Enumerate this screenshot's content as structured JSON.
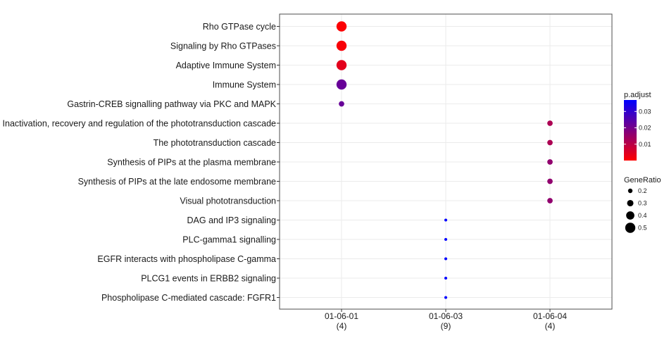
{
  "chart_data": {
    "type": "scatter",
    "title": "",
    "xlabel": "",
    "ylabel": "",
    "grid": true,
    "legend_position": "right",
    "x_categories": [
      {
        "label": "01-06-01",
        "count": "(4)"
      },
      {
        "label": "01-06-03",
        "count": "(9)"
      },
      {
        "label": "01-06-04",
        "count": "(4)"
      }
    ],
    "y_categories": [
      "Rho GTPase cycle",
      "Signaling by Rho GTPases",
      "Adaptive Immune System",
      "Immune System",
      "Gastrin-CREB signalling pathway via PKC and MAPK",
      "Inactivation, recovery and regulation of the phototransduction cascade",
      "The phototransduction cascade",
      "Synthesis of PIPs at the plasma membrane",
      "Synthesis of PIPs at the late endosome membrane",
      "Visual phototransduction",
      "DAG and IP3 signaling",
      "PLC-gamma1 signalling",
      "EGFR interacts with phospholipase C-gamma",
      "PLCG1 events in ERBB2 signaling",
      "Phospholipase C-mediated cascade: FGFR1"
    ],
    "points": [
      {
        "x": "01-06-01",
        "y": "Rho GTPase cycle",
        "gene_ratio": 0.5,
        "p_adjust": 0.0005
      },
      {
        "x": "01-06-01",
        "y": "Signaling by Rho GTPases",
        "gene_ratio": 0.5,
        "p_adjust": 0.001
      },
      {
        "x": "01-06-01",
        "y": "Adaptive Immune System",
        "gene_ratio": 0.5,
        "p_adjust": 0.004
      },
      {
        "x": "01-06-01",
        "y": "Immune System",
        "gene_ratio": 0.5,
        "p_adjust": 0.022
      },
      {
        "x": "01-06-01",
        "y": "Gastrin-CREB signalling pathway via PKC and MAPK",
        "gene_ratio": 0.25,
        "p_adjust": 0.022
      },
      {
        "x": "01-06-04",
        "y": "Inactivation, recovery and regulation of the phototransduction cascade",
        "gene_ratio": 0.25,
        "p_adjust": 0.012
      },
      {
        "x": "01-06-04",
        "y": "The phototransduction cascade",
        "gene_ratio": 0.25,
        "p_adjust": 0.012
      },
      {
        "x": "01-06-04",
        "y": "Synthesis of PIPs at the plasma membrane",
        "gene_ratio": 0.25,
        "p_adjust": 0.016
      },
      {
        "x": "01-06-04",
        "y": "Synthesis of PIPs at the late endosome membrane",
        "gene_ratio": 0.25,
        "p_adjust": 0.016
      },
      {
        "x": "01-06-04",
        "y": "Visual phototransduction",
        "gene_ratio": 0.25,
        "p_adjust": 0.016
      },
      {
        "x": "01-06-03",
        "y": "DAG and IP3 signaling",
        "gene_ratio": 0.111,
        "p_adjust": 0.037
      },
      {
        "x": "01-06-03",
        "y": "PLC-gamma1 signalling",
        "gene_ratio": 0.111,
        "p_adjust": 0.037
      },
      {
        "x": "01-06-03",
        "y": "EGFR interacts with phospholipase C-gamma",
        "gene_ratio": 0.111,
        "p_adjust": 0.037
      },
      {
        "x": "01-06-03",
        "y": "PLCG1 events in ERBB2 signaling",
        "gene_ratio": 0.111,
        "p_adjust": 0.037
      },
      {
        "x": "01-06-03",
        "y": "Phospholipase C-mediated cascade: FGFR1",
        "gene_ratio": 0.111,
        "p_adjust": 0.037
      }
    ],
    "color_legend": {
      "title": "p.adjust",
      "ticks": [
        "0.03",
        "0.02",
        "0.01"
      ],
      "tick_values": [
        0.03,
        0.02,
        0.01
      ],
      "range": [
        0.0,
        0.037
      ],
      "low_color": "#ff0000",
      "high_color": "#0000ff"
    },
    "size_legend": {
      "title": "GeneRatio",
      "labels": [
        "0.2",
        "0.3",
        "0.4",
        "0.5"
      ],
      "values": [
        0.2,
        0.3,
        0.4,
        0.5
      ]
    }
  }
}
